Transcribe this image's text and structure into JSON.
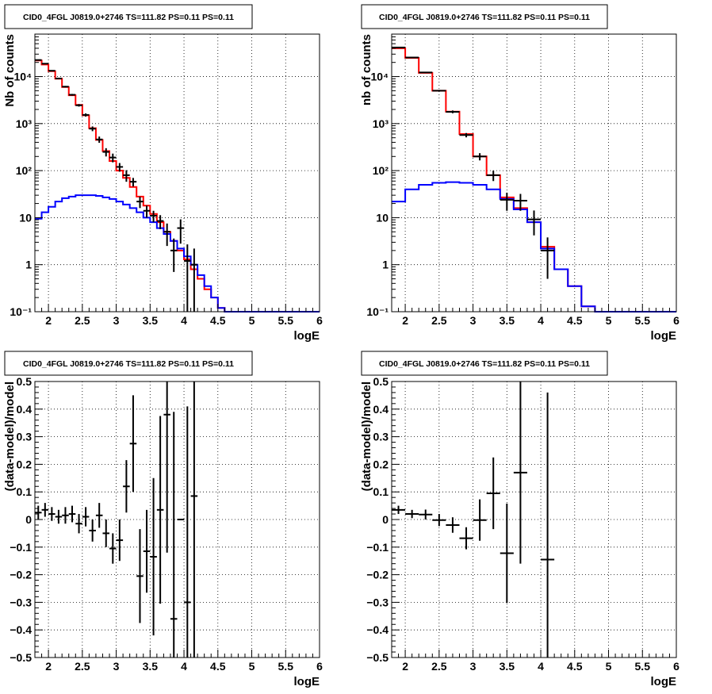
{
  "chart_data": [
    {
      "type": "line",
      "panel": "top-left",
      "title": "CID0_4FGL J0819.0+2746 TS=111.82 PS=0.11 PS=0.11",
      "xlabel": "logE",
      "ylabel": "Nb of counts",
      "xlim": [
        1.8,
        6.0
      ],
      "ylim": [
        0.1,
        80000
      ],
      "yscale": "log",
      "grid": true,
      "x_ticks": [
        2,
        2.5,
        3,
        3.5,
        4,
        4.5,
        5,
        5.5,
        6
      ],
      "x_tick_labels": [
        "2",
        "2.5",
        "3",
        "3.5",
        "4",
        "4.5",
        "5",
        "5.5",
        "6"
      ],
      "y_ticks": [
        0.1,
        1,
        10,
        100,
        1000,
        10000
      ],
      "y_tick_labels": [
        "10⁻¹",
        "1",
        "10",
        "10²",
        "10³",
        "10⁴"
      ],
      "bin_edges": [
        1.8,
        1.9,
        2.0,
        2.1,
        2.2,
        2.3,
        2.4,
        2.5,
        2.6,
        2.7,
        2.8,
        2.9,
        3.0,
        3.1,
        3.2,
        3.3,
        3.4,
        3.5,
        3.6,
        3.7,
        3.8,
        3.9,
        4.0,
        4.1,
        4.2,
        4.3,
        4.4,
        4.5,
        4.6,
        4.7,
        4.8,
        4.9,
        5.0,
        5.1,
        5.2,
        5.3,
        5.4,
        5.5,
        5.6,
        5.7,
        5.8,
        5.9,
        6.0
      ],
      "series": [
        {
          "color": "#ff0000",
          "values": [
            22000,
            18000,
            13000,
            9000,
            6000,
            4000,
            2500,
            1500,
            800,
            450,
            260,
            160,
            100,
            70,
            45,
            28,
            18,
            12,
            8,
            5,
            3.2,
            2.0,
            1.3,
            0.8,
            0.5,
            0.3,
            0.2,
            0.12,
            0.1,
            0.1,
            0.1,
            0.1,
            0.1,
            0.1,
            0.1,
            0.1,
            0.1,
            0.1,
            0.1,
            0.1,
            0.1,
            0.1
          ]
        },
        {
          "color": "#0000ff",
          "values": [
            9.5,
            13,
            17,
            22,
            26,
            28,
            30,
            30,
            30,
            29,
            27,
            25,
            22,
            19,
            16,
            13,
            10,
            8,
            6,
            4.5,
            3.2,
            2.2,
            1.5,
            1.0,
            0.6,
            0.35,
            0.2,
            0.12,
            0.1,
            0.1,
            0.1,
            0.1,
            0.1,
            0.1,
            0.1,
            0.1,
            0.1,
            0.1,
            0.1,
            0.1,
            0.1,
            0.1
          ]
        }
      ],
      "points": {
        "color": "#000000",
        "x": [
          1.85,
          1.95,
          2.05,
          2.15,
          2.25,
          2.35,
          2.45,
          2.55,
          2.65,
          2.75,
          2.85,
          2.95,
          3.05,
          3.15,
          3.25,
          3.35,
          3.45,
          3.55,
          3.65,
          3.75,
          3.85,
          3.95,
          4.05,
          4.15
        ],
        "y": [
          22500,
          18800,
          13300,
          9100,
          6100,
          4100,
          2450,
          1530,
          780,
          460,
          250,
          190,
          120,
          80,
          58,
          22,
          14,
          11,
          8.5,
          5.0,
          2.0,
          6.0,
          1.2,
          1.0
        ],
        "err_low": [
          400,
          350,
          300,
          250,
          220,
          180,
          150,
          120,
          90,
          70,
          50,
          40,
          25,
          22,
          12,
          6,
          4,
          3,
          2.8,
          2.5,
          1.3,
          3.2,
          1.1,
          1.0
        ],
        "err_high": [
          400,
          350,
          300,
          250,
          220,
          180,
          150,
          120,
          90,
          70,
          50,
          40,
          25,
          22,
          12,
          6,
          4,
          3,
          2.8,
          2.5,
          1.6,
          3.2,
          1.5,
          1.2
        ]
      }
    },
    {
      "type": "line",
      "panel": "top-right",
      "title": "CID0_4FGL J0819.0+2746 TS=111.82 PS=0.11 PS=0.11",
      "xlabel": "logE",
      "ylabel": "nb of counts",
      "xlim": [
        1.8,
        6.0
      ],
      "ylim": [
        0.1,
        80000
      ],
      "yscale": "log",
      "grid": true,
      "x_ticks": [
        2,
        2.5,
        3,
        3.5,
        4,
        4.5,
        5,
        5.5,
        6
      ],
      "x_tick_labels": [
        "2",
        "2.5",
        "3",
        "3.5",
        "4",
        "4.5",
        "5",
        "5.5",
        "6"
      ],
      "y_ticks": [
        0.1,
        1,
        10,
        100,
        1000,
        10000
      ],
      "y_tick_labels": [
        "10⁻¹",
        "1",
        "10",
        "10²",
        "10³",
        "10⁴"
      ],
      "bin_edges": [
        1.8,
        2.0,
        2.2,
        2.4,
        2.6,
        2.8,
        3.0,
        3.2,
        3.4,
        3.6,
        3.8,
        4.0,
        4.2,
        4.4,
        4.6,
        4.8,
        5.0,
        5.2,
        5.4,
        5.6,
        5.8,
        6.0
      ],
      "series": [
        {
          "color": "#ff0000",
          "values": [
            40000,
            25000,
            12000,
            5000,
            1800,
            600,
            200,
            80,
            27,
            16,
            8,
            2.4,
            0.8,
            0.35,
            0.13,
            0.1,
            0.1,
            0.1,
            0.1,
            0.1,
            0.1
          ]
        },
        {
          "color": "#0000ff",
          "values": [
            22,
            40,
            50,
            55,
            57,
            55,
            50,
            40,
            25,
            15,
            8,
            2.2,
            0.8,
            0.35,
            0.13,
            0.1,
            0.1,
            0.1,
            0.1,
            0.1,
            0.1
          ]
        }
      ],
      "points": {
        "color": "#000000",
        "x": [
          1.9,
          2.1,
          2.3,
          2.5,
          2.7,
          2.9,
          3.1,
          3.3,
          3.5,
          3.7,
          3.9,
          4.1
        ],
        "y": [
          41500,
          25500,
          12200,
          5000,
          1780,
          570,
          200,
          80,
          24,
          23,
          9.2,
          2.0
        ],
        "err_low": [
          600,
          450,
          300,
          200,
          120,
          60,
          35,
          20,
          10,
          9,
          5,
          1.5
        ],
        "err_high": [
          600,
          450,
          300,
          200,
          120,
          60,
          35,
          20,
          10,
          9,
          5,
          1.8
        ]
      }
    },
    {
      "type": "scatter",
      "panel": "bottom-left",
      "title": "CID0_4FGL J0819.0+2746 TS=111.82 PS=0.11 PS=0.11",
      "xlabel": "logE",
      "ylabel": "(data-model)/model",
      "xlim": [
        1.8,
        6.0
      ],
      "ylim": [
        -0.5,
        0.5
      ],
      "yscale": "linear",
      "grid": true,
      "x_ticks": [
        2,
        2.5,
        3,
        3.5,
        4,
        4.5,
        5,
        5.5,
        6
      ],
      "x_tick_labels": [
        "2",
        "2.5",
        "3",
        "3.5",
        "4",
        "4.5",
        "5",
        "5.5",
        "6"
      ],
      "y_ticks": [
        -0.5,
        -0.4,
        -0.3,
        -0.2,
        -0.1,
        0,
        0.1,
        0.2,
        0.3,
        0.4,
        0.5
      ],
      "y_tick_labels": [
        "−0.5",
        "−0.4",
        "−0.3",
        "−0.2",
        "−0.1",
        "0",
        "0.1",
        "0.2",
        "0.3",
        "0.4",
        "0.5"
      ],
      "bin_halfwidth": 0.05,
      "points": {
        "color": "#000000",
        "x": [
          1.85,
          1.95,
          2.05,
          2.15,
          2.25,
          2.35,
          2.45,
          2.55,
          2.65,
          2.75,
          2.85,
          2.95,
          3.05,
          3.15,
          3.25,
          3.35,
          3.45,
          3.55,
          3.65,
          3.75,
          3.85,
          3.95,
          4.05,
          4.15
        ],
        "y": [
          0.025,
          0.035,
          0.02,
          0.01,
          0.015,
          0.02,
          -0.015,
          0.01,
          -0.04,
          0.015,
          -0.05,
          -0.105,
          -0.075,
          0.12,
          0.275,
          -0.205,
          -0.115,
          -0.135,
          0.035,
          0.38,
          -0.36,
          0.0,
          -0.3,
          0.085
        ],
        "err": [
          0.025,
          0.025,
          0.025,
          0.025,
          0.03,
          0.03,
          0.035,
          0.035,
          0.04,
          0.045,
          0.05,
          0.055,
          0.075,
          0.095,
          0.175,
          0.17,
          0.15,
          0.285,
          0.34,
          0.5,
          0.75,
          0.0,
          0.71,
          0.6
        ]
      }
    },
    {
      "type": "scatter",
      "panel": "bottom-right",
      "title": "CID0_4FGL J0819.0+2746 TS=111.82 PS=0.11 PS=0.11",
      "xlabel": "logE",
      "ylabel": "(data-model)/model",
      "xlim": [
        1.8,
        6.0
      ],
      "ylim": [
        -0.5,
        0.5
      ],
      "yscale": "linear",
      "grid": true,
      "x_ticks": [
        2,
        2.5,
        3,
        3.5,
        4,
        4.5,
        5,
        5.5,
        6
      ],
      "x_tick_labels": [
        "2",
        "2.5",
        "3",
        "3.5",
        "4",
        "4.5",
        "5",
        "5.5",
        "6"
      ],
      "y_ticks": [
        -0.5,
        -0.4,
        -0.3,
        -0.2,
        -0.1,
        0,
        0.1,
        0.2,
        0.3,
        0.4,
        0.5
      ],
      "y_tick_labels": [
        "−0.5",
        "−0.4",
        "−0.3",
        "−0.2",
        "−0.1",
        "0",
        "0.1",
        "0.2",
        "0.3",
        "0.4",
        "0.5"
      ],
      "bin_halfwidth": 0.1,
      "points": {
        "color": "#000000",
        "x": [
          1.9,
          2.1,
          2.3,
          2.5,
          2.7,
          2.9,
          3.1,
          3.3,
          3.5,
          3.7,
          4.1
        ],
        "y": [
          0.035,
          0.02,
          0.018,
          -0.002,
          -0.02,
          -0.068,
          -0.002,
          0.095,
          -0.122,
          0.17,
          -0.145
        ],
        "err": [
          0.015,
          0.015,
          0.018,
          0.022,
          0.028,
          0.04,
          0.075,
          0.13,
          0.18,
          0.33,
          0.605
        ]
      }
    }
  ]
}
